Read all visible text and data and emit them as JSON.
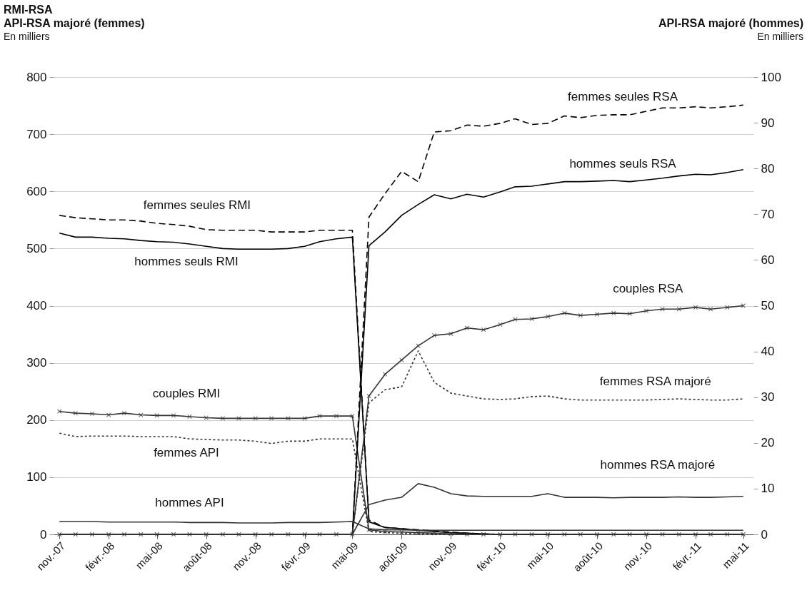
{
  "chart_data": {
    "type": "line",
    "title": "RMI-RSA",
    "ylabel": "API-RSA majoré (femmes)",
    "y2label": "API-RSA majoré (hommes)",
    "x": [
      "2007-11",
      "2007-12",
      "2008-01",
      "2008-02",
      "2008-03",
      "2008-04",
      "2008-05",
      "2008-06",
      "2008-07",
      "2008-08",
      "2008-09",
      "2008-10",
      "2008-11",
      "2008-12",
      "2009-01",
      "2009-02",
      "2009-03",
      "2009-04",
      "2009-05",
      "2009-06",
      "2009-07",
      "2009-08",
      "2009-09",
      "2009-10",
      "2009-11",
      "2009-12",
      "2010-01",
      "2010-02",
      "2010-03",
      "2010-04",
      "2010-05",
      "2010-06",
      "2010-07",
      "2010-08",
      "2010-09",
      "2010-10",
      "2010-11",
      "2010-12",
      "2011-01",
      "2011-02",
      "2011-03",
      "2011-04",
      "2011-05"
    ],
    "series": [
      {
        "name": "femmes seules RMI",
        "color": "#000000",
        "line_style": "dashed",
        "values": [
          558,
          554,
          552,
          550,
          550,
          548,
          544,
          542,
          539,
          533,
          532,
          532,
          532,
          529,
          529,
          529,
          532,
          532,
          532,
          25,
          12,
          10,
          8,
          6,
          4,
          2,
          1,
          0,
          0,
          0,
          0,
          0,
          0,
          0,
          0,
          0,
          0,
          0,
          0,
          0,
          0,
          0,
          0
        ]
      },
      {
        "name": "hommes seuls RMI",
        "color": "#000000",
        "line_style": "solid",
        "values": [
          527,
          520,
          520,
          518,
          517,
          514,
          512,
          511,
          508,
          504,
          500,
          499,
          499,
          499,
          500,
          504,
          512,
          517,
          520,
          22,
          12,
          10,
          7,
          5,
          3,
          2,
          1,
          0,
          0,
          0,
          0,
          0,
          0,
          0,
          0,
          0,
          0,
          0,
          0,
          0,
          0,
          0,
          0
        ]
      },
      {
        "name": "couples RMI",
        "color": "#333333",
        "line_style": "solid",
        "marker": "cross",
        "values": [
          215,
          212,
          211,
          209,
          212,
          209,
          208,
          208,
          206,
          204,
          203,
          203,
          203,
          203,
          203,
          203,
          207,
          207,
          207,
          8,
          5,
          4,
          3,
          2,
          1,
          0,
          0,
          0,
          0,
          0,
          0,
          0,
          0,
          0,
          0,
          0,
          0,
          0,
          0,
          0,
          0,
          0,
          0
        ]
      },
      {
        "name": "femmes API",
        "color": "#333333",
        "line_style": "dotted",
        "values": [
          177,
          171,
          172,
          172,
          172,
          171,
          171,
          171,
          167,
          166,
          165,
          165,
          163,
          159,
          163,
          163,
          167,
          167,
          167,
          5,
          3,
          2,
          1,
          0,
          0,
          0,
          0,
          0,
          0,
          0,
          0,
          0,
          0,
          0,
          0,
          0,
          0,
          0,
          0,
          0,
          0,
          0,
          0
        ]
      },
      {
        "name": "hommes API",
        "color": "#333333",
        "line_style": "solid",
        "axis": "y2",
        "values": [
          2.8,
          2.8,
          2.8,
          2.7,
          2.7,
          2.7,
          2.7,
          2.7,
          2.6,
          2.6,
          2.6,
          2.5,
          2.5,
          2.5,
          2.6,
          2.6,
          2.6,
          2.7,
          2.8,
          1.2,
          1.0,
          1.0,
          0.9,
          0.9,
          0.9,
          0.9,
          0.9,
          0.9,
          0.9,
          0.9,
          0.9,
          0.9,
          0.9,
          0.9,
          0.9,
          0.9,
          0.9,
          0.9,
          0.9,
          0.9,
          0.9,
          0.9,
          0.9
        ]
      },
      {
        "name": "femmes seules RSA",
        "color": "#000000",
        "line_style": "dashed",
        "values": [
          0,
          0,
          0,
          0,
          0,
          0,
          0,
          0,
          0,
          0,
          0,
          0,
          0,
          0,
          0,
          0,
          0,
          0,
          0,
          555,
          596,
          635,
          617,
          704,
          706,
          716,
          714,
          719,
          727,
          717,
          719,
          732,
          729,
          733,
          734,
          734,
          740,
          746,
          746,
          748,
          746,
          748,
          751
        ]
      },
      {
        "name": "hommes seuls RSA",
        "color": "#000000",
        "line_style": "solid",
        "values": [
          0,
          0,
          0,
          0,
          0,
          0,
          0,
          0,
          0,
          0,
          0,
          0,
          0,
          0,
          0,
          0,
          0,
          0,
          0,
          505,
          529,
          558,
          577,
          594,
          587,
          595,
          590,
          599,
          608,
          609,
          613,
          617,
          617,
          618,
          619,
          617,
          620,
          623,
          627,
          630,
          629,
          633,
          638
        ]
      },
      {
        "name": "couples RSA",
        "color": "#333333",
        "line_style": "solid",
        "marker": "cross",
        "values": [
          0,
          0,
          0,
          0,
          0,
          0,
          0,
          0,
          0,
          0,
          0,
          0,
          0,
          0,
          0,
          0,
          0,
          0,
          0,
          242,
          280,
          305,
          330,
          348,
          351,
          361,
          358,
          367,
          376,
          377,
          381,
          387,
          383,
          385,
          387,
          386,
          391,
          394,
          394,
          397,
          394,
          397,
          400
        ]
      },
      {
        "name": "femmes RSA majoré",
        "color": "#333333",
        "line_style": "dotted",
        "values": [
          0,
          0,
          0,
          0,
          0,
          0,
          0,
          0,
          0,
          0,
          0,
          0,
          0,
          0,
          0,
          0,
          0,
          0,
          0,
          230,
          253,
          258,
          321,
          266,
          247,
          242,
          237,
          236,
          237,
          241,
          242,
          237,
          235,
          235,
          235,
          235,
          235,
          236,
          237,
          236,
          235,
          235,
          237
        ]
      },
      {
        "name": "hommes RSA majoré",
        "color": "#333333",
        "line_style": "solid",
        "axis": "y2",
        "values": [
          0,
          0,
          0,
          0,
          0,
          0,
          0,
          0,
          0,
          0,
          0,
          0,
          0,
          0,
          0,
          0,
          0,
          0,
          0,
          6.5,
          7.5,
          8.1,
          11.1,
          10.3,
          8.9,
          8.4,
          8.3,
          8.3,
          8.3,
          8.3,
          8.9,
          8.1,
          8.1,
          8.1,
          8.0,
          8.1,
          8.1,
          8.1,
          8.2,
          8.1,
          8.1,
          8.2,
          8.3
        ]
      }
    ],
    "xlim": [
      "2007-10-21",
      "2011-05-20"
    ],
    "xticks": [
      {
        "value": "2007-11",
        "label": "nov.-07"
      },
      {
        "value": "2008-02",
        "label": "févr.-08"
      },
      {
        "value": "2008-05",
        "label": "mai-08"
      },
      {
        "value": "2008-08",
        "label": "août-08"
      },
      {
        "value": "2008-11",
        "label": "nov.-08"
      },
      {
        "value": "2009-02",
        "label": "févr.-09"
      },
      {
        "value": "2009-05",
        "label": "mai-09"
      },
      {
        "value": "2009-08",
        "label": "août-09"
      },
      {
        "value": "2009-11",
        "label": "nov.-09"
      },
      {
        "value": "2010-02",
        "label": "févr.-10"
      },
      {
        "value": "2010-05",
        "label": "mai-10"
      },
      {
        "value": "2010-08",
        "label": "août-10"
      },
      {
        "value": "2010-11",
        "label": "nov.-10"
      },
      {
        "value": "2011-02",
        "label": "févr.-11"
      },
      {
        "value": "2011-05",
        "label": "mai-11"
      }
    ],
    "ylim": [
      0,
      800
    ],
    "yticks": [
      0,
      100,
      200,
      300,
      400,
      500,
      600,
      700,
      800
    ],
    "y2lim": [
      0,
      100
    ],
    "y2ticks": [
      0,
      10,
      20,
      30,
      40,
      50,
      60,
      70,
      80,
      90,
      100
    ],
    "grid": "y",
    "annotations": [
      "En milliers",
      "En milliers"
    ]
  }
}
